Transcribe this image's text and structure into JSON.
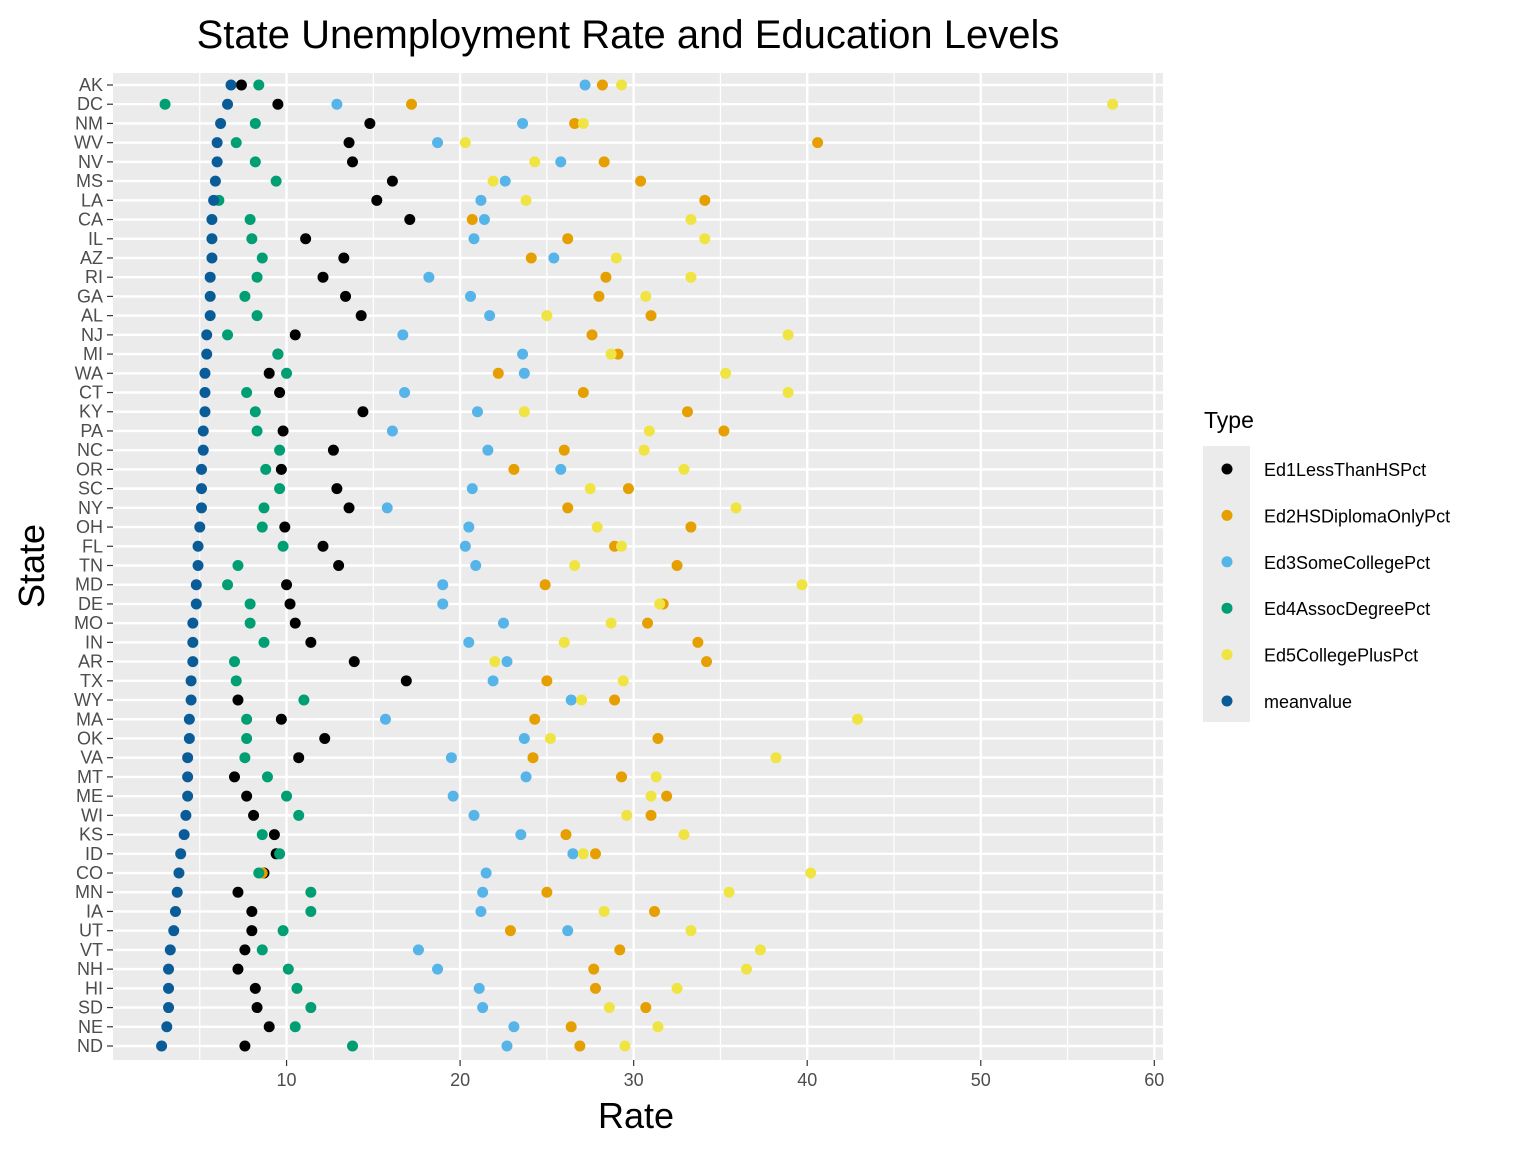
{
  "chart_data": {
    "type": "scatter",
    "title": "State Unemployment Rate and Education Levels",
    "xlabel": "Rate",
    "ylabel": "State",
    "xlim": [
      0,
      60.5
    ],
    "xticks": [
      10,
      20,
      30,
      40,
      50,
      60
    ],
    "grid": true,
    "legend": {
      "title": "Type",
      "position": "right"
    },
    "categories": [
      "AK",
      "DC",
      "NM",
      "WV",
      "NV",
      "MS",
      "LA",
      "CA",
      "IL",
      "AZ",
      "RI",
      "GA",
      "AL",
      "NJ",
      "MI",
      "WA",
      "CT",
      "KY",
      "PA",
      "NC",
      "OR",
      "SC",
      "NY",
      "OH",
      "FL",
      "TN",
      "MD",
      "DE",
      "MO",
      "IN",
      "AR",
      "TX",
      "WY",
      "MA",
      "OK",
      "VA",
      "MT",
      "ME",
      "WI",
      "KS",
      "ID",
      "CO",
      "MN",
      "IA",
      "UT",
      "VT",
      "NH",
      "HI",
      "SD",
      "NE",
      "ND"
    ],
    "series": [
      {
        "name": "Ed1LessThanHSPct",
        "color": "#000000",
        "values": [
          7.4,
          9.5,
          14.8,
          13.6,
          13.8,
          16.1,
          15.2,
          17.1,
          11.1,
          13.3,
          12.1,
          13.4,
          14.3,
          10.5,
          9.5,
          9.0,
          9.6,
          14.4,
          9.8,
          12.7,
          9.7,
          12.9,
          13.6,
          9.9,
          12.1,
          13.0,
          10.0,
          10.2,
          10.5,
          11.4,
          13.9,
          16.9,
          7.2,
          9.7,
          12.2,
          10.7,
          7.0,
          7.7,
          8.1,
          9.3,
          9.4,
          8.7,
          7.2,
          8.0,
          8.0,
          7.6,
          7.2,
          8.2,
          8.3,
          9.0,
          7.6
        ]
      },
      {
        "name": "Ed2HSDiplomaOnlyPct",
        "color": "#e69f00",
        "values": [
          28.2,
          17.2,
          26.6,
          40.6,
          28.3,
          30.4,
          34.1,
          20.7,
          26.2,
          24.1,
          28.4,
          28.0,
          31.0,
          27.6,
          29.1,
          22.2,
          27.1,
          33.1,
          35.2,
          26.0,
          23.1,
          29.7,
          26.2,
          33.3,
          28.9,
          32.5,
          24.9,
          31.7,
          30.8,
          33.7,
          34.2,
          25.0,
          28.9,
          24.3,
          31.4,
          24.2,
          29.3,
          31.9,
          31.0,
          26.1,
          27.8,
          8.6,
          25.0,
          31.2,
          22.9,
          29.2,
          27.7,
          27.8,
          30.7,
          26.4,
          26.9
        ]
      },
      {
        "name": "Ed3SomeCollegePct",
        "color": "#56b4e9",
        "values": [
          27.2,
          12.9,
          23.6,
          18.7,
          25.8,
          22.6,
          21.2,
          21.4,
          20.8,
          25.4,
          18.2,
          20.6,
          21.7,
          16.7,
          23.6,
          23.7,
          16.8,
          21.0,
          16.1,
          21.6,
          25.8,
          20.7,
          15.8,
          20.5,
          20.3,
          20.9,
          19.0,
          19.0,
          22.5,
          20.5,
          22.7,
          21.9,
          26.4,
          15.7,
          23.7,
          19.5,
          23.8,
          19.6,
          20.8,
          23.5,
          26.5,
          21.5,
          21.3,
          21.2,
          26.2,
          17.6,
          18.7,
          21.1,
          21.3,
          23.1,
          22.7
        ]
      },
      {
        "name": "Ed4AssocDegreePct",
        "color": "#009e73",
        "values": [
          8.4,
          3.0,
          8.2,
          7.1,
          8.2,
          9.4,
          6.1,
          7.9,
          8.0,
          8.6,
          8.3,
          7.6,
          8.3,
          6.6,
          9.5,
          10.0,
          7.7,
          8.2,
          8.3,
          9.6,
          8.8,
          9.6,
          8.7,
          8.6,
          9.8,
          7.2,
          6.6,
          7.9,
          7.9,
          8.7,
          7.0,
          7.1,
          11.0,
          7.7,
          7.7,
          7.6,
          8.9,
          10.0,
          10.7,
          8.6,
          9.6,
          8.4,
          11.4,
          11.4,
          9.8,
          8.6,
          10.1,
          10.6,
          11.4,
          10.5,
          13.8
        ]
      },
      {
        "name": "Ed5CollegePlusPct",
        "color": "#f0e442",
        "values": [
          29.3,
          57.6,
          27.1,
          20.3,
          24.3,
          21.9,
          23.8,
          33.3,
          34.1,
          29.0,
          33.3,
          30.7,
          25.0,
          38.9,
          28.7,
          35.3,
          38.9,
          23.7,
          30.9,
          30.6,
          32.9,
          27.5,
          35.9,
          27.9,
          29.3,
          26.6,
          39.7,
          31.5,
          28.7,
          26.0,
          22.0,
          29.4,
          27.0,
          42.9,
          25.2,
          38.2,
          31.3,
          31.0,
          29.6,
          32.9,
          27.1,
          40.2,
          35.5,
          28.3,
          33.3,
          37.3,
          36.5,
          32.5,
          28.6,
          31.4,
          29.5
        ]
      },
      {
        "name": "meanvalue",
        "color": "#0a5c99",
        "values": [
          6.8,
          6.6,
          6.2,
          6.0,
          6.0,
          5.9,
          5.8,
          5.7,
          5.7,
          5.7,
          5.6,
          5.6,
          5.6,
          5.4,
          5.4,
          5.3,
          5.3,
          5.3,
          5.2,
          5.2,
          5.1,
          5.1,
          5.1,
          5.0,
          4.9,
          4.9,
          4.8,
          4.8,
          4.6,
          4.6,
          4.6,
          4.5,
          4.5,
          4.4,
          4.4,
          4.3,
          4.3,
          4.3,
          4.2,
          4.1,
          3.9,
          3.8,
          3.7,
          3.6,
          3.5,
          3.3,
          3.2,
          3.2,
          3.2,
          3.1,
          2.8
        ]
      }
    ]
  }
}
